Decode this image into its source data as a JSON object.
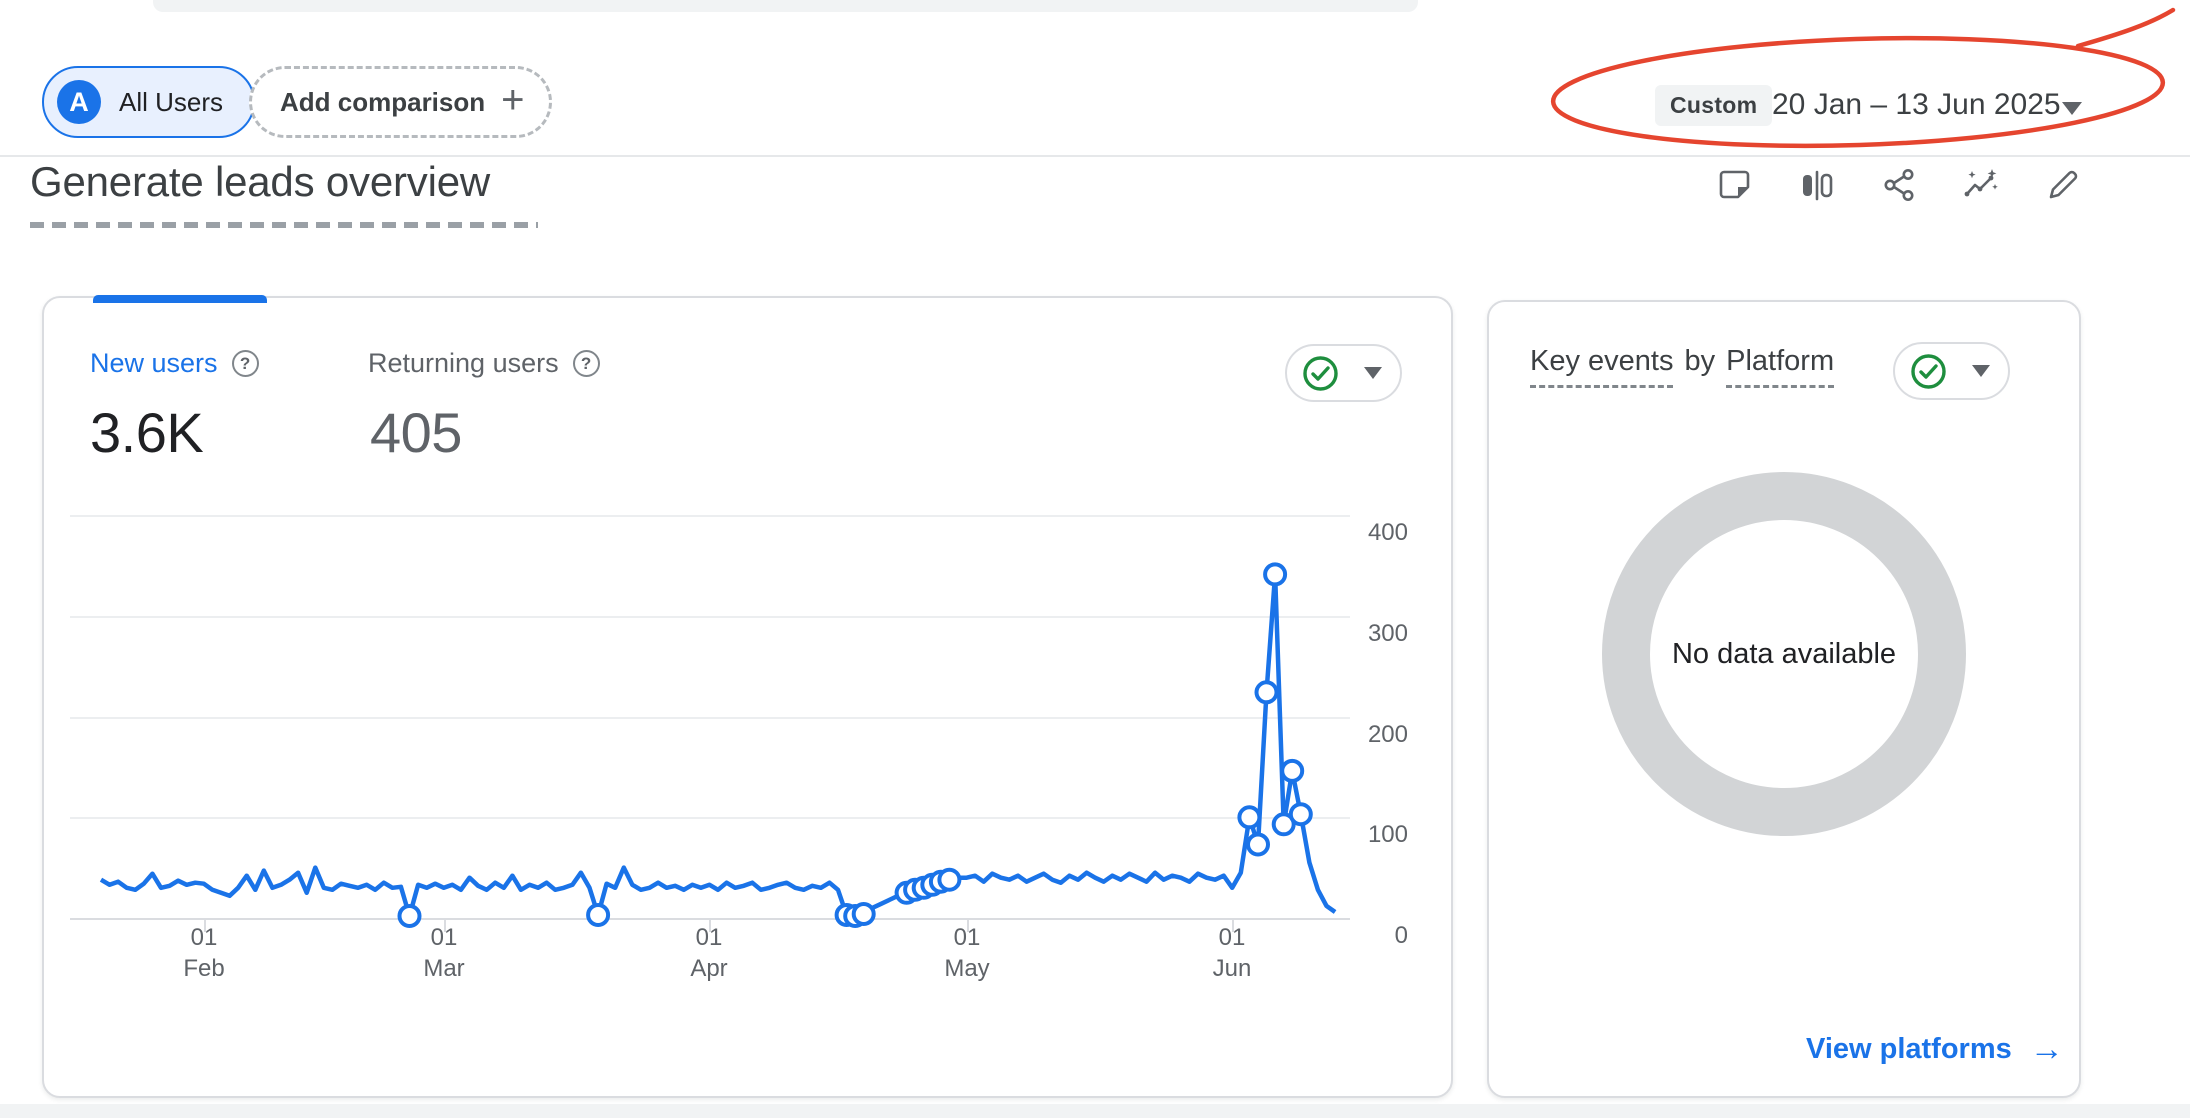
{
  "top_bar": {
    "all_users": {
      "avatar_letter": "A",
      "label": "All Users"
    },
    "add_comparison": {
      "label": "Add comparison",
      "plus_glyph": "+"
    },
    "date_range": {
      "badge": "Custom",
      "text": "20 Jan – 13 Jun 2025"
    }
  },
  "page_header": {
    "title": "Generate leads overview",
    "action_icons": [
      "notes-icon",
      "comparisons-icon",
      "share-icon",
      "insights-icon",
      "edit-icon"
    ]
  },
  "users_card": {
    "metrics": [
      {
        "label": "New users",
        "value": "3.6K",
        "help_glyph": "?"
      },
      {
        "label": "Returning users",
        "value": "405",
        "help_glyph": "?"
      }
    ],
    "status_button": "ok-checkmark"
  },
  "platform_card": {
    "title": {
      "part1": "Key events",
      "part2": "by",
      "part3": "Platform"
    },
    "status_button": "ok-checkmark",
    "empty_state": "No data available",
    "link": {
      "label": "View platforms",
      "arrow": "→"
    }
  },
  "colors": {
    "accent_blue": "#1a73e8",
    "status_green": "#1e8e3e",
    "annotation_red": "#e5452f",
    "donut_gray": "#d2d4d6"
  },
  "chart_data": {
    "type": "line",
    "title": "New users over time",
    "start_date": "20 Jan 2025",
    "end_date": "13 Jun 2025",
    "ylim": [
      0,
      400
    ],
    "grid": "horizontal",
    "y_axis_side": "right",
    "legend": "none",
    "y_ticks": [
      "400",
      "300",
      "200",
      "100",
      "0"
    ],
    "x_ticks": [
      {
        "day": "01",
        "month": "Feb"
      },
      {
        "day": "01",
        "month": "Mar"
      },
      {
        "day": "01",
        "month": "Apr"
      },
      {
        "day": "01",
        "month": "May"
      },
      {
        "day": "01",
        "month": "Jun"
      }
    ],
    "x_tick_indices": [
      12,
      40,
      71,
      101,
      132
    ],
    "marker_indices": [
      36,
      58,
      87,
      88,
      89,
      94,
      95,
      96,
      97,
      98,
      99,
      134,
      135,
      136,
      137,
      138,
      139,
      140
    ],
    "series": [
      {
        "name": "New users",
        "color": "#1a73e8",
        "values": [
          38,
          33,
          36,
          30,
          28,
          34,
          44,
          30,
          32,
          37,
          33,
          35,
          34,
          28,
          25,
          22,
          30,
          42,
          28,
          47,
          30,
          33,
          38,
          45,
          25,
          50,
          30,
          28,
          34,
          32,
          30,
          33,
          28,
          35,
          30,
          31,
          2,
          33,
          30,
          34,
          30,
          33,
          28,
          40,
          32,
          28,
          35,
          30,
          42,
          28,
          33,
          30,
          35,
          28,
          30,
          33,
          45,
          30,
          3,
          34,
          30,
          50,
          33,
          28,
          30,
          35,
          30,
          32,
          28,
          33,
          30,
          33,
          28,
          35,
          30,
          32,
          35,
          28,
          30,
          33,
          35,
          30,
          28,
          32,
          30,
          35,
          28,
          3,
          2,
          4,
          10,
          14,
          18,
          22,
          25,
          28,
          30,
          33,
          36,
          38,
          40,
          40,
          42,
          36,
          44,
          40,
          38,
          42,
          36,
          40,
          44,
          38,
          35,
          42,
          38,
          45,
          40,
          36,
          42,
          38,
          44,
          40,
          36,
          45,
          38,
          42,
          40,
          36,
          44,
          40,
          38,
          42,
          30,
          45,
          100,
          73,
          224,
          341,
          93,
          146,
          103,
          55,
          28,
          12,
          6
        ]
      }
    ]
  }
}
